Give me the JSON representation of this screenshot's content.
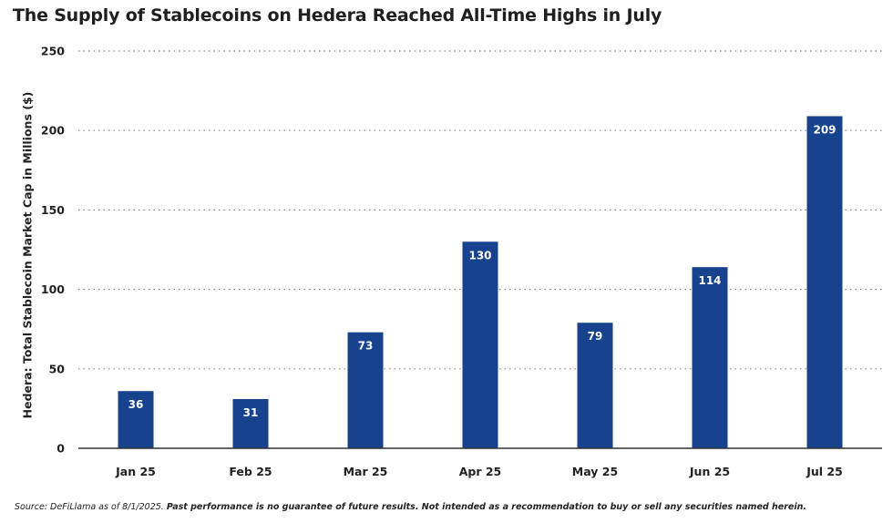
{
  "chart_data": {
    "type": "bar",
    "title": "The Supply of Stablecoins on Hedera Reached All-Time Highs in July",
    "ylabel": "Hedera: Total Stablecoin Market Cap in Millions ($)",
    "xlabel": "",
    "categories": [
      "Jan 25",
      "Feb 25",
      "Mar 25",
      "Apr 25",
      "May 25",
      "Jun 25",
      "Jul 25"
    ],
    "values": [
      36,
      31,
      73,
      130,
      79,
      114,
      209
    ],
    "data_labels": [
      "36",
      "31",
      "73",
      "130",
      "79",
      "114",
      "209"
    ],
    "ylim": [
      0,
      250
    ],
    "yticks": [
      0,
      50,
      100,
      150,
      200,
      250
    ],
    "ytick_labels": [
      "0",
      "50",
      "100",
      "150",
      "200",
      "250"
    ],
    "grid": "horizontal dotted",
    "legend": "none",
    "bar_color": "#17428d",
    "label_color": "#ffffff"
  },
  "footer": {
    "source": "Source: DeFiLlama as of 8/1/2025.",
    "disclaimer": "Past performance is no guarantee of future results. Not intended as a recommendation to buy or sell any securities named herein."
  }
}
